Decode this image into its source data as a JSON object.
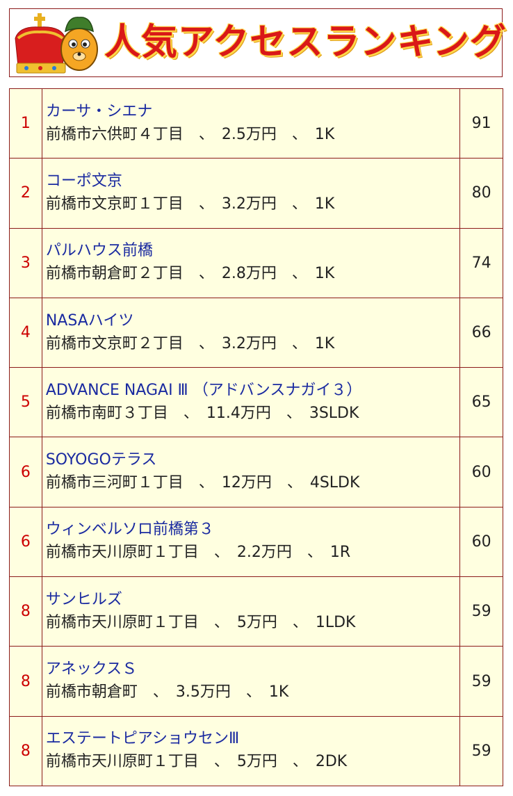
{
  "banner": {
    "title": "人気アクセスランキング",
    "icons": [
      "crown-icon",
      "mascot-icon"
    ]
  },
  "ranking": {
    "rows": [
      {
        "rank": "1",
        "name": "カーサ・シエナ",
        "detail": "前橋市六供町４丁目　、　2.5万円　、　1K",
        "count": "91"
      },
      {
        "rank": "2",
        "name": "コーポ文京",
        "detail": "前橋市文京町１丁目　、　3.2万円　、　1K",
        "count": "80"
      },
      {
        "rank": "3",
        "name": "パルハウス前橋",
        "detail": "前橋市朝倉町２丁目　、　2.8万円　、　1K",
        "count": "74"
      },
      {
        "rank": "4",
        "name": "NASAハイツ",
        "detail": "前橋市文京町２丁目　、　3.2万円　、　1K",
        "count": "66"
      },
      {
        "rank": "5",
        "name": "ADVANCE NAGAI Ⅲ （アドバンスナガイ３）",
        "detail": "前橋市南町３丁目　、　11.4万円　、　3SLDK",
        "count": "65"
      },
      {
        "rank": "6",
        "name": "SOYOGOテラス",
        "detail": "前橋市三河町１丁目　、　12万円　、　4SLDK",
        "count": "60"
      },
      {
        "rank": "6",
        "name": "ウィンベルソロ前橋第３",
        "detail": "前橋市天川原町１丁目　、　2.2万円　、　1R",
        "count": "60"
      },
      {
        "rank": "8",
        "name": "サンヒルズ",
        "detail": "前橋市天川原町１丁目　、　5万円　、　1LDK",
        "count": "59"
      },
      {
        "rank": "8",
        "name": "アネックスＳ",
        "detail": "前橋市朝倉町　、　3.5万円　、　1K",
        "count": "59"
      },
      {
        "rank": "8",
        "name": "エステートピアショウセンⅢ",
        "detail": "前橋市天川原町１丁目　、　5万円　、　2DK",
        "count": "59"
      }
    ]
  },
  "colors": {
    "border": "#8b1a1a",
    "row_background": "#ffffe0",
    "rank_text": "#cc0000",
    "link_text": "#1a2aa0",
    "title_red": "#d91818",
    "title_outline": "#ffd84a"
  }
}
